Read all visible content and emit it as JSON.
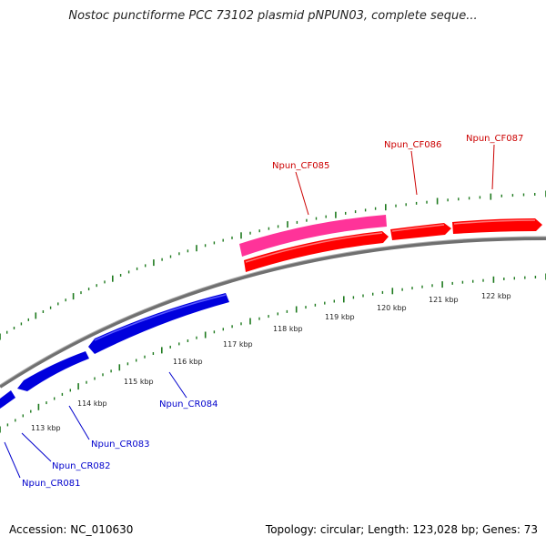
{
  "title": "Nostoc punctiforme PCC 73102 plasmid pNPUN03, complete seque...",
  "footer": {
    "accession": "Accession: NC_010630",
    "summary": "Topology: circular; Length: 123,028 bp; Genes: 73"
  },
  "colors": {
    "backbone": "#808080",
    "forward_gene": "#ff0000",
    "forward_gene_highlight": "#ff3399",
    "reverse_gene": "#0000dd",
    "forward_label": "#cc0000",
    "reverse_label": "#0000cc",
    "tick": "#1e7a1e"
  },
  "ticks": [
    {
      "label": "113 kbp"
    },
    {
      "label": "114 kbp"
    },
    {
      "label": "115 kbp"
    },
    {
      "label": "116 kbp"
    },
    {
      "label": "117 kbp"
    },
    {
      "label": "118 kbp"
    },
    {
      "label": "119 kbp"
    },
    {
      "label": "120 kbp"
    },
    {
      "label": "121 kbp"
    },
    {
      "label": "122 kbp"
    }
  ],
  "forward_genes": [
    {
      "name": "Npun_CF085",
      "labeled": true
    },
    {
      "name": "Npun_CF086",
      "labeled": true
    },
    {
      "name": "Npun_CF087",
      "labeled": true
    }
  ],
  "reverse_genes": [
    {
      "name": "Npun_CR081",
      "labeled": true
    },
    {
      "name": "Npun_CR082",
      "labeled": true
    },
    {
      "name": "Npun_CR083",
      "labeled": true
    },
    {
      "name": "Npun_CR084",
      "labeled": true
    }
  ]
}
